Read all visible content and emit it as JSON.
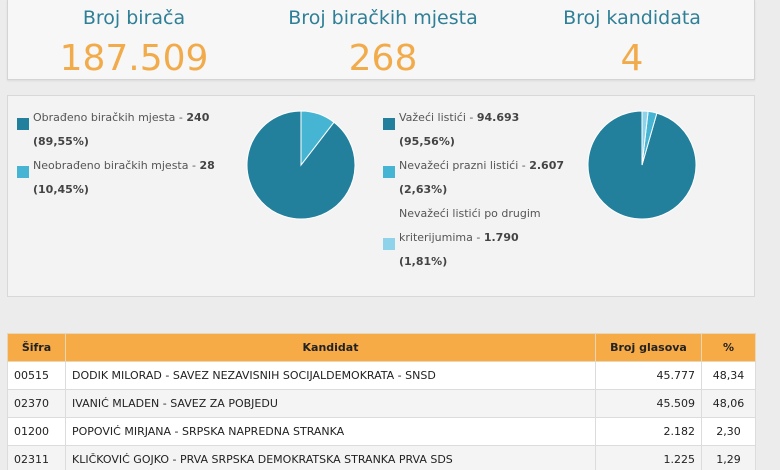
{
  "summary": {
    "voters": {
      "label": "Broj birača",
      "value": "187.509"
    },
    "stations": {
      "label": "Broj biračkih mjesta",
      "value": "268"
    },
    "candidates": {
      "label": "Broj kandidata",
      "value": "4"
    }
  },
  "stations_chart": {
    "legend": [
      {
        "label": "Obrađeno biračkih mjesta - ",
        "value": "240",
        "pct": "(89,55%)",
        "color": "#23809c"
      },
      {
        "label": "Neobrađeno biračkih mjesta - ",
        "value": "28",
        "pct": "(10,45%)",
        "color": "#45b5d3"
      }
    ]
  },
  "ballots_chart": {
    "legend": [
      {
        "label": "Važeći listići - ",
        "value": "94.693",
        "pct": "(95,56%)",
        "color": "#23809c"
      },
      {
        "label": "Nevažeći prazni listići - ",
        "value": "2.607",
        "pct": "(2,63%)",
        "color": "#45b5d3"
      },
      {
        "label_line1": "Nevažeći listići po drugim",
        "label": "kriterijumima - ",
        "value": "1.790",
        "pct": "(1,81%)",
        "color": "#8fd3ea"
      }
    ]
  },
  "chart_data": [
    {
      "type": "pie",
      "categories": [
        "Obrađeno biračkih mjesta",
        "Neobrađeno biračkih mjesta"
      ],
      "values": [
        240,
        28
      ],
      "colors": [
        "#23809c",
        "#45b5d3"
      ]
    },
    {
      "type": "pie",
      "categories": [
        "Važeći listići",
        "Nevažeći prazni listići",
        "Nevažeći listići po drugim kriterijumima"
      ],
      "values": [
        94693,
        2607,
        1790
      ],
      "colors": [
        "#23809c",
        "#45b5d3",
        "#8fd3ea"
      ]
    }
  ],
  "table": {
    "headers": {
      "code": "Šifra",
      "candidate": "Kandidat",
      "votes": "Broj glasova",
      "pct": "%"
    },
    "rows": [
      {
        "code": "00515",
        "candidate": "DODIK MILORAD - SAVEZ NEZAVISNIH SOCIJALDEMOKRATA - SNSD",
        "votes": "45.777",
        "pct": "48,34"
      },
      {
        "code": "02370",
        "candidate": "IVANIĆ MLADEN - SAVEZ ZA POBJEDU",
        "votes": "45.509",
        "pct": "48,06"
      },
      {
        "code": "01200",
        "candidate": "POPOVIĆ MIRJANA - SRPSKA NAPREDNA STRANKA",
        "votes": "2.182",
        "pct": "2,30"
      },
      {
        "code": "02311",
        "candidate": "KLIČKOVIĆ GOJKO - PRVA SRPSKA DEMOKRATSKA STRANKA PRVA SDS",
        "votes": "1.225",
        "pct": "1,29"
      }
    ]
  },
  "colors": {
    "accent": "#f6ab47",
    "label_blue": "#2f7f97",
    "value_orange": "#f2ab4b"
  }
}
